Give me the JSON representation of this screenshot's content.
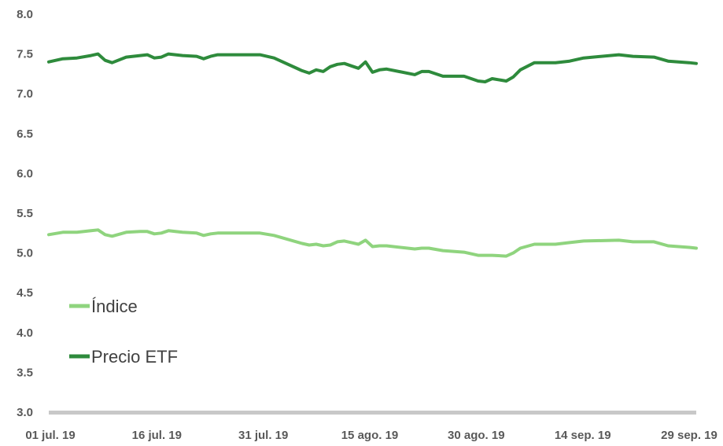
{
  "chart_data": {
    "type": "line",
    "title": "",
    "xlabel": "",
    "ylabel": "",
    "ylim": [
      3.0,
      8.0
    ],
    "yticks": [
      "3.0",
      "3.5",
      "4.0",
      "4.5",
      "5.0",
      "5.5",
      "6.0",
      "6.5",
      "7.0",
      "7.5",
      "8.0"
    ],
    "xticks": [
      "01 jul. 19",
      "16 jul. 19",
      "31 jul. 19",
      "15 ago. 19",
      "30 ago. 19",
      "14 sep. 19",
      "29 sep. 19"
    ],
    "grid": false,
    "legend": "left",
    "colors": {
      "indice": "#8fd47e",
      "precio": "#2e8b3c",
      "axis": "#c8c8c8"
    },
    "series": [
      {
        "name": "Índice",
        "color": "#8fd47e",
        "points": [
          [
            "2019-07-01",
            5.23
          ],
          [
            "2019-07-03",
            5.26
          ],
          [
            "2019-07-05",
            5.26
          ],
          [
            "2019-07-07",
            5.28
          ],
          [
            "2019-07-08",
            5.29
          ],
          [
            "2019-07-09",
            5.23
          ],
          [
            "2019-07-10",
            5.21
          ],
          [
            "2019-07-12",
            5.26
          ],
          [
            "2019-07-14",
            5.27
          ],
          [
            "2019-07-15",
            5.27
          ],
          [
            "2019-07-16",
            5.24
          ],
          [
            "2019-07-17",
            5.25
          ],
          [
            "2019-07-18",
            5.28
          ],
          [
            "2019-07-20",
            5.26
          ],
          [
            "2019-07-22",
            5.25
          ],
          [
            "2019-07-23",
            5.22
          ],
          [
            "2019-07-24",
            5.24
          ],
          [
            "2019-07-25",
            5.25
          ],
          [
            "2019-07-31",
            5.25
          ],
          [
            "2019-08-02",
            5.22
          ],
          [
            "2019-08-06",
            5.12
          ],
          [
            "2019-08-07",
            5.1
          ],
          [
            "2019-08-08",
            5.11
          ],
          [
            "2019-08-09",
            5.09
          ],
          [
            "2019-08-10",
            5.1
          ],
          [
            "2019-08-11",
            5.14
          ],
          [
            "2019-08-12",
            5.15
          ],
          [
            "2019-08-13",
            5.13
          ],
          [
            "2019-08-14",
            5.11
          ],
          [
            "2019-08-15",
            5.16
          ],
          [
            "2019-08-16",
            5.08
          ],
          [
            "2019-08-17",
            5.09
          ],
          [
            "2019-08-18",
            5.09
          ],
          [
            "2019-08-22",
            5.05
          ],
          [
            "2019-08-23",
            5.06
          ],
          [
            "2019-08-24",
            5.06
          ],
          [
            "2019-08-26",
            5.03
          ],
          [
            "2019-08-29",
            5.01
          ],
          [
            "2019-08-31",
            4.97
          ],
          [
            "2019-09-01",
            4.97
          ],
          [
            "2019-09-02",
            4.97
          ],
          [
            "2019-09-04",
            4.96
          ],
          [
            "2019-09-05",
            5.0
          ],
          [
            "2019-09-06",
            5.06
          ],
          [
            "2019-09-08",
            5.11
          ],
          [
            "2019-09-11",
            5.11
          ],
          [
            "2019-09-13",
            5.13
          ],
          [
            "2019-09-15",
            5.15
          ],
          [
            "2019-09-20",
            5.16
          ],
          [
            "2019-09-22",
            5.14
          ],
          [
            "2019-09-25",
            5.14
          ],
          [
            "2019-09-27",
            5.09
          ],
          [
            "2019-09-30",
            5.07
          ],
          [
            "2019-10-01",
            5.06
          ]
        ]
      },
      {
        "name": "Precio ETF",
        "color": "#2e8b3c",
        "points": [
          [
            "2019-07-01",
            7.4
          ],
          [
            "2019-07-03",
            7.44
          ],
          [
            "2019-07-05",
            7.45
          ],
          [
            "2019-07-07",
            7.48
          ],
          [
            "2019-07-08",
            7.5
          ],
          [
            "2019-07-09",
            7.42
          ],
          [
            "2019-07-10",
            7.39
          ],
          [
            "2019-07-12",
            7.46
          ],
          [
            "2019-07-14",
            7.48
          ],
          [
            "2019-07-15",
            7.49
          ],
          [
            "2019-07-16",
            7.45
          ],
          [
            "2019-07-17",
            7.46
          ],
          [
            "2019-07-18",
            7.5
          ],
          [
            "2019-07-20",
            7.48
          ],
          [
            "2019-07-22",
            7.47
          ],
          [
            "2019-07-23",
            7.44
          ],
          [
            "2019-07-24",
            7.47
          ],
          [
            "2019-07-25",
            7.49
          ],
          [
            "2019-07-31",
            7.49
          ],
          [
            "2019-08-02",
            7.45
          ],
          [
            "2019-08-06",
            7.29
          ],
          [
            "2019-08-07",
            7.26
          ],
          [
            "2019-08-08",
            7.3
          ],
          [
            "2019-08-09",
            7.28
          ],
          [
            "2019-08-10",
            7.34
          ],
          [
            "2019-08-11",
            7.37
          ],
          [
            "2019-08-12",
            7.38
          ],
          [
            "2019-08-13",
            7.35
          ],
          [
            "2019-08-14",
            7.32
          ],
          [
            "2019-08-15",
            7.4
          ],
          [
            "2019-08-16",
            7.27
          ],
          [
            "2019-08-17",
            7.3
          ],
          [
            "2019-08-18",
            7.31
          ],
          [
            "2019-08-22",
            7.24
          ],
          [
            "2019-08-23",
            7.28
          ],
          [
            "2019-08-24",
            7.28
          ],
          [
            "2019-08-26",
            7.22
          ],
          [
            "2019-08-29",
            7.22
          ],
          [
            "2019-08-31",
            7.16
          ],
          [
            "2019-09-01",
            7.15
          ],
          [
            "2019-09-02",
            7.19
          ],
          [
            "2019-09-04",
            7.16
          ],
          [
            "2019-09-05",
            7.21
          ],
          [
            "2019-09-06",
            7.3
          ],
          [
            "2019-09-08",
            7.39
          ],
          [
            "2019-09-11",
            7.39
          ],
          [
            "2019-09-13",
            7.41
          ],
          [
            "2019-09-15",
            7.45
          ],
          [
            "2019-09-20",
            7.49
          ],
          [
            "2019-09-22",
            7.47
          ],
          [
            "2019-09-25",
            7.46
          ],
          [
            "2019-09-27",
            7.41
          ],
          [
            "2019-09-30",
            7.39
          ],
          [
            "2019-10-01",
            7.38
          ]
        ]
      }
    ]
  }
}
